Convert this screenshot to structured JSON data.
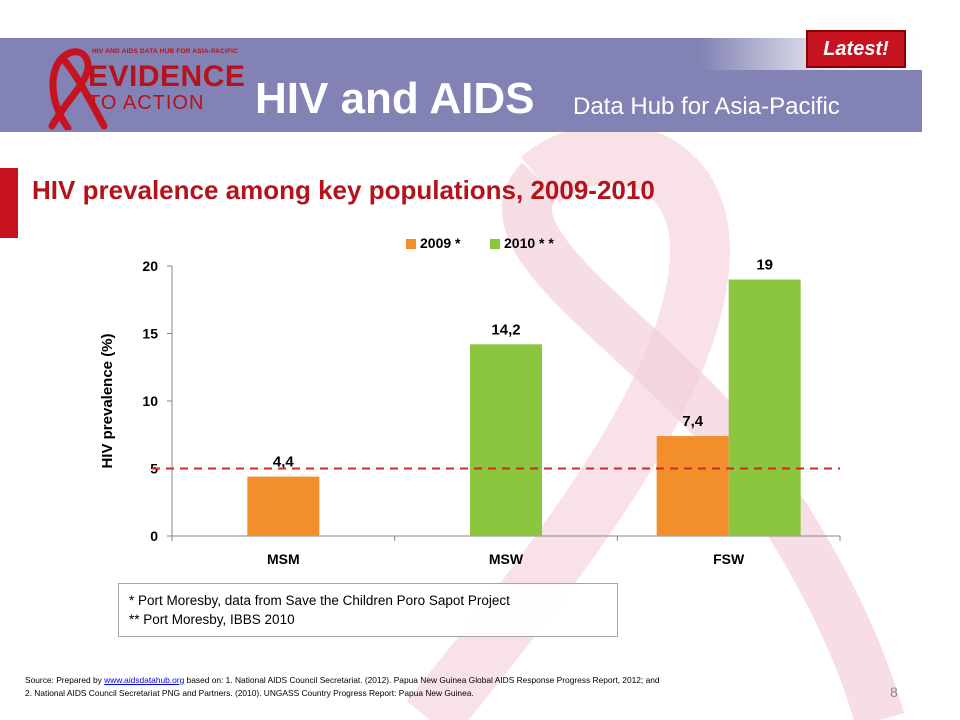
{
  "header": {
    "badge": "Latest!",
    "logo_small": "HIV AND AIDS DATA HUB FOR ASIA-PACIFIC",
    "logo_evidence": "EVIDENCE",
    "logo_action": "TO ACTION",
    "title": "HIV and AIDS",
    "subtitle": "Data Hub for Asia-Pacific"
  },
  "slide": {
    "title": "HIV prevalence among key populations, 2009-2010",
    "page_number": "8"
  },
  "chart_data": {
    "type": "bar",
    "categories": [
      "MSM",
      "MSW",
      "FSW"
    ],
    "series": [
      {
        "name": "2009 *",
        "color": "#f28e2b",
        "values": [
          4.4,
          null,
          7.4
        ],
        "labels": [
          "4,4",
          "",
          "7,4"
        ]
      },
      {
        "name": "2010 * *",
        "color": "#8cc63f",
        "values": [
          null,
          14.2,
          19
        ],
        "labels": [
          "",
          "14,2",
          "19"
        ]
      }
    ],
    "ylabel": "HIV prevalence (%)",
    "ylim": [
      0,
      20
    ],
    "yticks": [
      "0",
      "5",
      "10",
      "15",
      "20"
    ],
    "reference_line": {
      "value": 5,
      "color": "#d62728",
      "style": "dashed"
    },
    "legend_position": "top",
    "grid": false
  },
  "notes": [
    "* Port Moresby, data from Save the Children Poro Sapot Project",
    "** Port Moresby, IBBS 2010"
  ],
  "source": {
    "prefix": "Source: Prepared by ",
    "link": "www.aidsdatahub.org",
    "text1": " based on: 1. National AIDS Council Secretariat. (2012). Papua New Guinea Global AIDS Response Progress Report, 2012; and",
    "text2": "2. National AIDS Council Secretariat PNG and Partners. (2010). UNGASS Country Progress Report: Papua New Guinea."
  }
}
